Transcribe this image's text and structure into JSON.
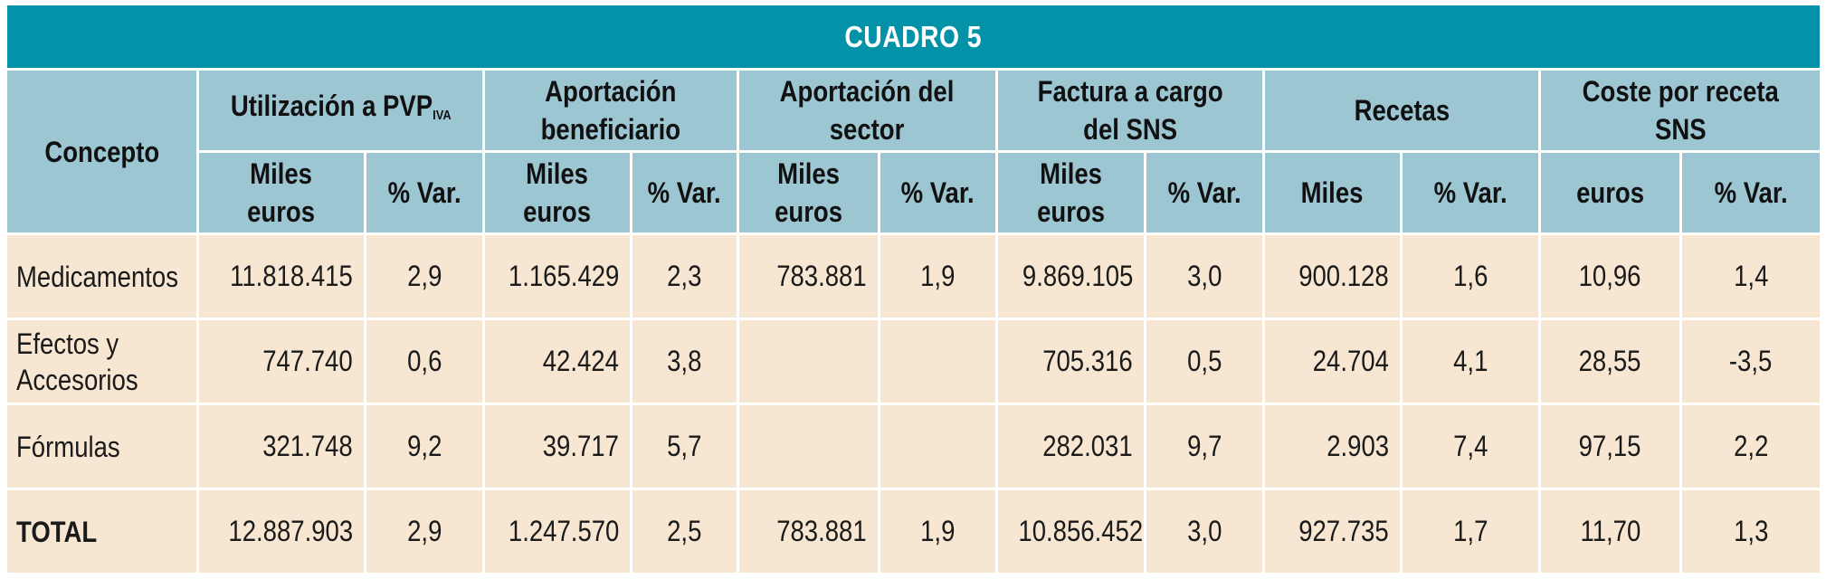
{
  "title": "CUADRO 5",
  "headers": {
    "concepto": "Concepto",
    "groups": [
      {
        "label": "Utilización a PVP",
        "sub": "IVA"
      },
      {
        "label_line1": "Aportación",
        "label_line2": "beneficiario"
      },
      {
        "label_line1": "Aportación del",
        "label_line2": "sector"
      },
      {
        "label_line1": "Factura a cargo",
        "label_line2": "del SNS"
      },
      {
        "label": "Recetas"
      },
      {
        "label_line1": "Coste por receta",
        "label_line2": "SNS"
      }
    ],
    "sub": {
      "miles_euros_line1": "Miles",
      "miles_euros_line2": "euros",
      "var": "% Var.",
      "miles": "Miles",
      "euros": "euros"
    }
  },
  "rows": [
    {
      "concept_line1": "Medicamentos",
      "concept_line2": "",
      "pvp": "11.818.415",
      "pvp_var": "2,9",
      "benef": "1.165.429",
      "benef_var": "2,3",
      "sector": "783.881",
      "sector_var": "1,9",
      "sns": "9.869.105",
      "sns_var": "3,0",
      "recetas": "900.128",
      "recetas_var": "1,6",
      "coste": "10,96",
      "coste_var": "1,4"
    },
    {
      "concept_line1": "Efectos y",
      "concept_line2": "Accesorios",
      "pvp": "747.740",
      "pvp_var": "0,6",
      "benef": "42.424",
      "benef_var": "3,8",
      "sector": "",
      "sector_var": "",
      "sns": "705.316",
      "sns_var": "0,5",
      "recetas": "24.704",
      "recetas_var": "4,1",
      "coste": "28,55",
      "coste_var": "-3,5"
    },
    {
      "concept_line1": "Fórmulas",
      "concept_line2": "",
      "pvp": "321.748",
      "pvp_var": "9,2",
      "benef": "39.717",
      "benef_var": "5,7",
      "sector": "",
      "sector_var": "",
      "sns": "282.031",
      "sns_var": "9,7",
      "recetas": "2.903",
      "recetas_var": "7,4",
      "coste": "97,15",
      "coste_var": "2,2"
    },
    {
      "concept_line1": "TOTAL",
      "concept_line2": "",
      "pvp": "12.887.903",
      "pvp_var": "2,9",
      "benef": "1.247.570",
      "benef_var": "2,5",
      "sector": "783.881",
      "sector_var": "1,9",
      "sns": "10.856.452",
      "sns_var": "3,0",
      "recetas": "927.735",
      "recetas_var": "1,7",
      "coste": "11,70",
      "coste_var": "1,3"
    }
  ]
}
